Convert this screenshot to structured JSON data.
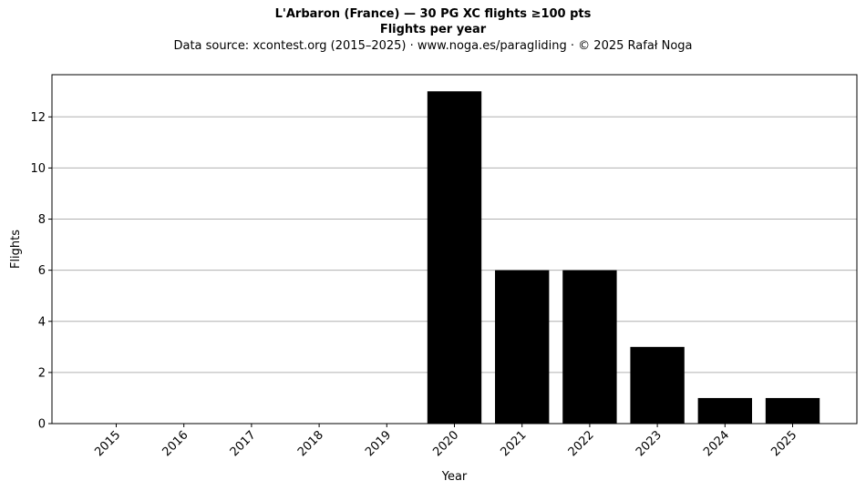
{
  "chart_data": {
    "type": "bar",
    "title": "L'Arbaron (France)  —  30 PG XC flights ≥100 pts",
    "subtitle": "Flights per year",
    "caption": "Data source: xcontest.org (2015–2025)  ·  www.noga.es/paragliding  ·  © 2025 Rafał Noga",
    "xlabel": "Year",
    "ylabel": "Flights",
    "categories": [
      "2015",
      "2016",
      "2017",
      "2018",
      "2019",
      "2020",
      "2021",
      "2022",
      "2023",
      "2024",
      "2025"
    ],
    "values": [
      0,
      0,
      0,
      0,
      0,
      13,
      6,
      6,
      3,
      1,
      1
    ],
    "ylim": [
      0,
      13.65
    ],
    "yticks": [
      0,
      2,
      4,
      6,
      8,
      10,
      12
    ],
    "grid": "y",
    "bar_color": "#000000",
    "grid_color": "#b0b0b0"
  }
}
